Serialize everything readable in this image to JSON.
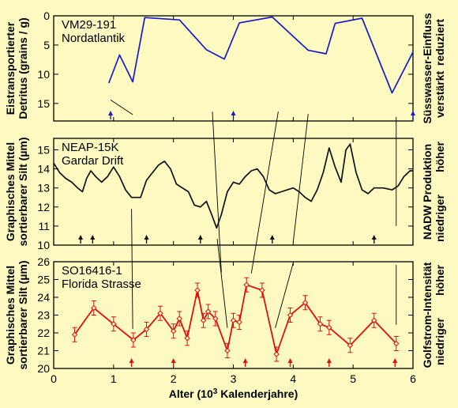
{
  "figure": {
    "xlabel_main": "Alter (10",
    "xlabel_sup": "3",
    "xlabel_tail": " Kalenderjahre)",
    "xlim": [
      0,
      6
    ],
    "xticks": [
      0,
      1,
      2,
      3,
      4,
      5,
      6
    ]
  },
  "chart_data": [
    {
      "type": "line",
      "title": "VM29-191",
      "subtitle": "Nordatlantik",
      "ylabel_line1": "Eistransportierter",
      "ylabel_line2": "Detritus (grains / g)",
      "ylim": [
        18,
        0
      ],
      "yticks": [
        0,
        5,
        10,
        15
      ],
      "y_inverted": true,
      "right_label_top": "reduziert",
      "right_label_main": "Süsswasser-Einfluss",
      "right_label_bottom": "verstärkt",
      "color": "#1a1acc",
      "x": [
        0.92,
        1.1,
        1.32,
        1.52,
        2.1,
        2.55,
        2.85,
        3.1,
        3.65,
        4.25,
        4.55,
        4.7,
        5.15,
        5.65,
        6.0
      ],
      "y": [
        11.5,
        6.7,
        11.3,
        0.3,
        0.7,
        5.8,
        7.4,
        1.2,
        0.2,
        5.9,
        6.5,
        1.3,
        0.4,
        13.2,
        6.2
      ],
      "markers": [
        0.95,
        3.0,
        6.0
      ]
    },
    {
      "type": "line",
      "title": "NEAP-15K",
      "subtitle": "Gardar Drift",
      "ylabel_line1": "Graphisches Mittel",
      "ylabel_line2": "sortierbarer Silt (µm)",
      "ylim": [
        10,
        15.6
      ],
      "yticks": [
        10,
        11,
        12,
        13,
        14,
        15
      ],
      "right_label_top": "höher",
      "right_label_main": "NADW Produktion",
      "right_label_bottom": "niedriger",
      "color": "#111111",
      "x": [
        0.0,
        0.1,
        0.2,
        0.3,
        0.4,
        0.48,
        0.55,
        0.62,
        0.7,
        0.8,
        0.9,
        1.0,
        1.1,
        1.2,
        1.3,
        1.45,
        1.55,
        1.65,
        1.75,
        1.85,
        1.95,
        2.05,
        2.15,
        2.25,
        2.35,
        2.45,
        2.55,
        2.65,
        2.72,
        2.8,
        2.9,
        3.0,
        3.1,
        3.2,
        3.3,
        3.4,
        3.5,
        3.6,
        3.7,
        3.8,
        3.9,
        4.0,
        4.1,
        4.2,
        4.3,
        4.4,
        4.5,
        4.6,
        4.7,
        4.8,
        4.88,
        4.95,
        5.05,
        5.15,
        5.25,
        5.35,
        5.5,
        5.65,
        5.75,
        5.85,
        5.95,
        6.0
      ],
      "y": [
        14.3,
        13.8,
        13.5,
        13.3,
        13.0,
        12.8,
        13.5,
        13.9,
        13.6,
        13.3,
        13.6,
        14.1,
        13.6,
        12.9,
        12.5,
        12.5,
        13.4,
        13.8,
        14.2,
        14.4,
        14.0,
        13.2,
        13.0,
        12.8,
        12.1,
        12.0,
        12.3,
        11.5,
        10.9,
        11.6,
        12.8,
        13.3,
        13.2,
        13.6,
        13.9,
        14.0,
        13.6,
        12.9,
        12.7,
        12.8,
        12.9,
        13.0,
        12.8,
        12.5,
        12.3,
        12.9,
        13.8,
        15.1,
        14.1,
        13.3,
        15.0,
        15.3,
        13.8,
        12.9,
        12.7,
        13.0,
        13.0,
        12.9,
        13.1,
        13.6,
        13.9,
        13.9
      ],
      "markers": [
        0.45,
        0.65,
        1.55,
        2.45,
        3.65,
        5.35
      ]
    },
    {
      "type": "line",
      "title": "SO16416-1",
      "subtitle": "Florida Strasse",
      "ylabel_line1": "Graphisches Mittel",
      "ylabel_line2": "sortierbarer Silt (µm)",
      "ylim": [
        20,
        26
      ],
      "yticks": [
        20,
        21,
        22,
        23,
        24,
        25,
        26
      ],
      "right_label_top": "höher",
      "right_label_main": "Golfstrom-Intensität",
      "right_label_bottom": "niedriger",
      "color": "#e01010",
      "x": [
        0.35,
        0.67,
        1.0,
        1.33,
        1.55,
        1.78,
        2.0,
        2.1,
        2.23,
        2.4,
        2.5,
        2.58,
        2.7,
        2.9,
        3.0,
        3.1,
        3.22,
        3.48,
        3.72,
        3.95,
        4.2,
        4.45,
        4.6,
        4.95,
        5.35,
        5.72
      ],
      "y": [
        21.9,
        23.4,
        22.5,
        21.6,
        22.2,
        23.1,
        22.1,
        22.8,
        21.7,
        24.4,
        22.7,
        23.2,
        22.8,
        21.0,
        22.7,
        22.6,
        24.7,
        24.4,
        20.8,
        23.0,
        23.7,
        22.5,
        22.3,
        21.3,
        22.7,
        21.4
      ],
      "errors": [
        0.4,
        0.4,
        0.4,
        0.4,
        0.4,
        0.4,
        0.4,
        0.4,
        0.4,
        0.4,
        0.4,
        0.4,
        0.4,
        0.4,
        0.4,
        0.4,
        0.4,
        0.4,
        0.4,
        0.4,
        0.4,
        0.4,
        0.4,
        0.4,
        0.4,
        0.4
      ],
      "markers": [
        1.3,
        2.0,
        3.2,
        3.95,
        4.6,
        5.7
      ]
    }
  ],
  "correlations": [
    [
      [
        0.95,
        14.4
      ],
      [
        1.32,
        16.9
      ]
    ],
    [
      [
        2.65,
        16.4
      ],
      [
        2.8,
        27.0
      ]
    ],
    [
      [
        3.75,
        16.4
      ],
      [
        3.3,
        27.1
      ]
    ],
    [
      [
        4.25,
        16.8
      ],
      [
        4.0,
        25.7
      ]
    ],
    [
      [
        5.72,
        17.3
      ],
      [
        5.72,
        24.2
      ]
    ],
    [
      [
        1.3,
        22.6
      ],
      [
        1.32,
        32.3
      ]
    ],
    [
      [
        2.73,
        25.4
      ],
      [
        2.9,
        32.2
      ]
    ],
    [
      [
        4.0,
        26.1
      ],
      [
        3.7,
        32.2
      ]
    ],
    [
      [
        5.72,
        26.3
      ],
      [
        5.72,
        31.9
      ]
    ]
  ]
}
